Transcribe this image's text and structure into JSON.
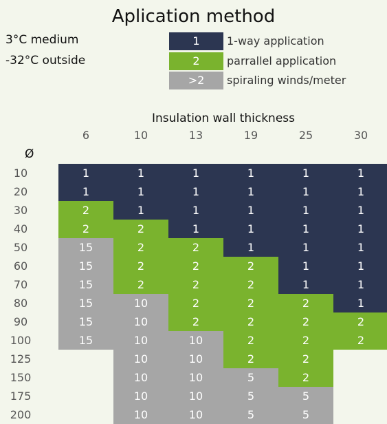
{
  "title": "Aplication method",
  "conditions": [
    "3°C medium",
    "-32°C outside"
  ],
  "legend": [
    {
      "key": "1",
      "label": "1-way application",
      "color": "#2c3651"
    },
    {
      "key": "2",
      "label": "parrallel application",
      "color": "#7ab32e"
    },
    {
      "key": ">2",
      "label": "spiraling winds/meter",
      "color": "#a6a6a6"
    }
  ],
  "chart_data": {
    "type": "heatmap",
    "xlabel": "Insulation wall thickness",
    "ylabel": "Ø",
    "columns": [
      "6",
      "10",
      "13",
      "19",
      "25",
      "30"
    ],
    "rows": [
      "10",
      "20",
      "30",
      "40",
      "50",
      "60",
      "70",
      "80",
      "90",
      "100",
      "125",
      "150",
      "175",
      "200"
    ],
    "values": [
      [
        "1",
        "1",
        "1",
        "1",
        "1",
        "1"
      ],
      [
        "1",
        "1",
        "1",
        "1",
        "1",
        "1"
      ],
      [
        "2",
        "1",
        "1",
        "1",
        "1",
        "1"
      ],
      [
        "2",
        "2",
        "1",
        "1",
        "1",
        "1"
      ],
      [
        "15",
        "2",
        "2",
        "1",
        "1",
        "1"
      ],
      [
        "15",
        "2",
        "2",
        "2",
        "1",
        "1"
      ],
      [
        "15",
        "2",
        "2",
        "2",
        "1",
        "1"
      ],
      [
        "15",
        "10",
        "2",
        "2",
        "2",
        "1"
      ],
      [
        "15",
        "10",
        "2",
        "2",
        "2",
        "2"
      ],
      [
        "15",
        "10",
        "10",
        "2",
        "2",
        "2"
      ],
      [
        "",
        "10",
        "10",
        "2",
        "2",
        ""
      ],
      [
        "",
        "10",
        "10",
        "5",
        "2",
        ""
      ],
      [
        "",
        "10",
        "10",
        "5",
        "5",
        ""
      ],
      [
        "",
        "10",
        "10",
        "5",
        "5",
        ""
      ]
    ],
    "colors": {
      "1": "#2c3651",
      "2": "#7ab32e",
      "gt2": "#a6a6a6"
    }
  }
}
